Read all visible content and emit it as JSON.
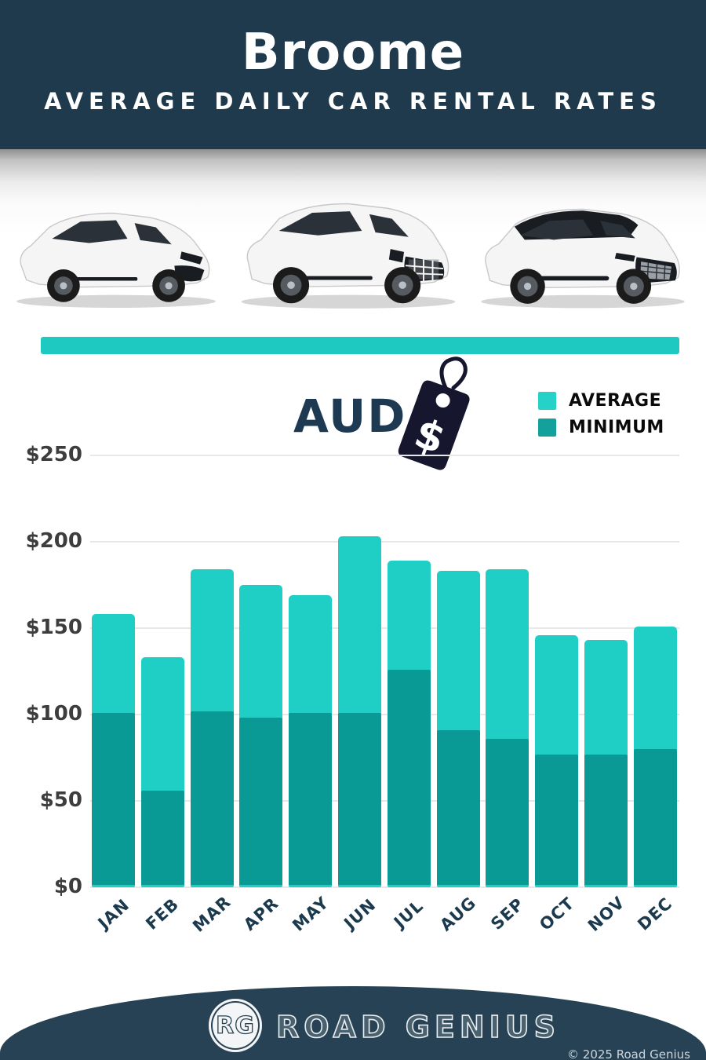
{
  "header": {
    "title": "Broome",
    "subtitle": "AVERAGE DAILY CAR RENTAL RATES"
  },
  "currency": {
    "label": "AUD",
    "tag_symbol": "$"
  },
  "legend": [
    {
      "label": "AVERAGE",
      "color": "#26d1c7"
    },
    {
      "label": "MINIMUM",
      "color": "#14a09b"
    }
  ],
  "chart_data": {
    "type": "bar",
    "title": "Broome Average Daily Car Rental Rates (AUD)",
    "categories": [
      "JAN",
      "FEB",
      "MAR",
      "APR",
      "MAY",
      "JUN",
      "JUL",
      "AUG",
      "SEP",
      "OCT",
      "NOV",
      "DEC"
    ],
    "series": [
      {
        "name": "AVERAGE",
        "color": "#1fcfc5",
        "values": [
          158,
          133,
          184,
          175,
          169,
          203,
          189,
          183,
          184,
          146,
          143,
          151
        ]
      },
      {
        "name": "MINIMUM",
        "color": "#0a9a96",
        "values": [
          101,
          56,
          102,
          98,
          101,
          101,
          126,
          91,
          86,
          77,
          77,
          80
        ]
      }
    ],
    "xlabel": "",
    "ylabel": "",
    "ytick_prefix": "$",
    "yticks": [
      0,
      50,
      100,
      150,
      200,
      250
    ],
    "ylim": [
      0,
      250
    ],
    "grid": true,
    "legend_position": "top-right",
    "bar_style": "overlaid"
  },
  "footer": {
    "logo_initials": "RG",
    "brand": "ROAD GENIUS",
    "copyright": "© 2025 Road Genius"
  },
  "cars": [
    "white-hatchback-car-image",
    "white-suv-car-image",
    "white-suv-dark-roof-car-image"
  ]
}
